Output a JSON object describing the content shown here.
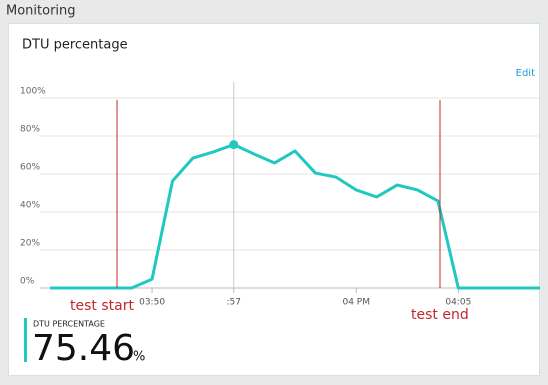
{
  "header": {
    "title": "Monitoring"
  },
  "chart_data": {
    "type": "line",
    "title": "DTU percentage",
    "edit": "Edit",
    "categories": [
      null,
      null,
      null,
      null,
      null,
      "03:50",
      null,
      null,
      null,
      ":57",
      null,
      null,
      null,
      null,
      null,
      "04 PM",
      null,
      null,
      null,
      null,
      "04:05",
      null,
      null,
      null,
      null
    ],
    "series": [
      {
        "name": "DTU percentage",
        "color": "#1fc8c0",
        "values": [
          0,
          0,
          0,
          0,
          0,
          4.7,
          56.3,
          68.4,
          71.6,
          75.46,
          70.5,
          65.8,
          72.1,
          60.5,
          58.4,
          51.6,
          47.9,
          54.2,
          51.6,
          45.8,
          0,
          0,
          0,
          0,
          0
        ]
      }
    ],
    "ylim": [
      0,
      100
    ],
    "yticks": [
      {
        "value": 0,
        "label": "0%"
      },
      {
        "value": 20,
        "label": "20%"
      },
      {
        "value": 40,
        "label": "40%"
      },
      {
        "value": 60,
        "label": "60%"
      },
      {
        "value": 80,
        "label": "80%"
      },
      {
        "value": 100,
        "label": "100%"
      }
    ],
    "grid": true,
    "annotations": [
      {
        "text": "test start",
        "color": "#c0282d"
      },
      {
        "text": "test end",
        "color": "#c0282d"
      }
    ]
  },
  "summary": {
    "label": "DTU PERCENTAGE",
    "value": "75.46",
    "unit": "%"
  }
}
